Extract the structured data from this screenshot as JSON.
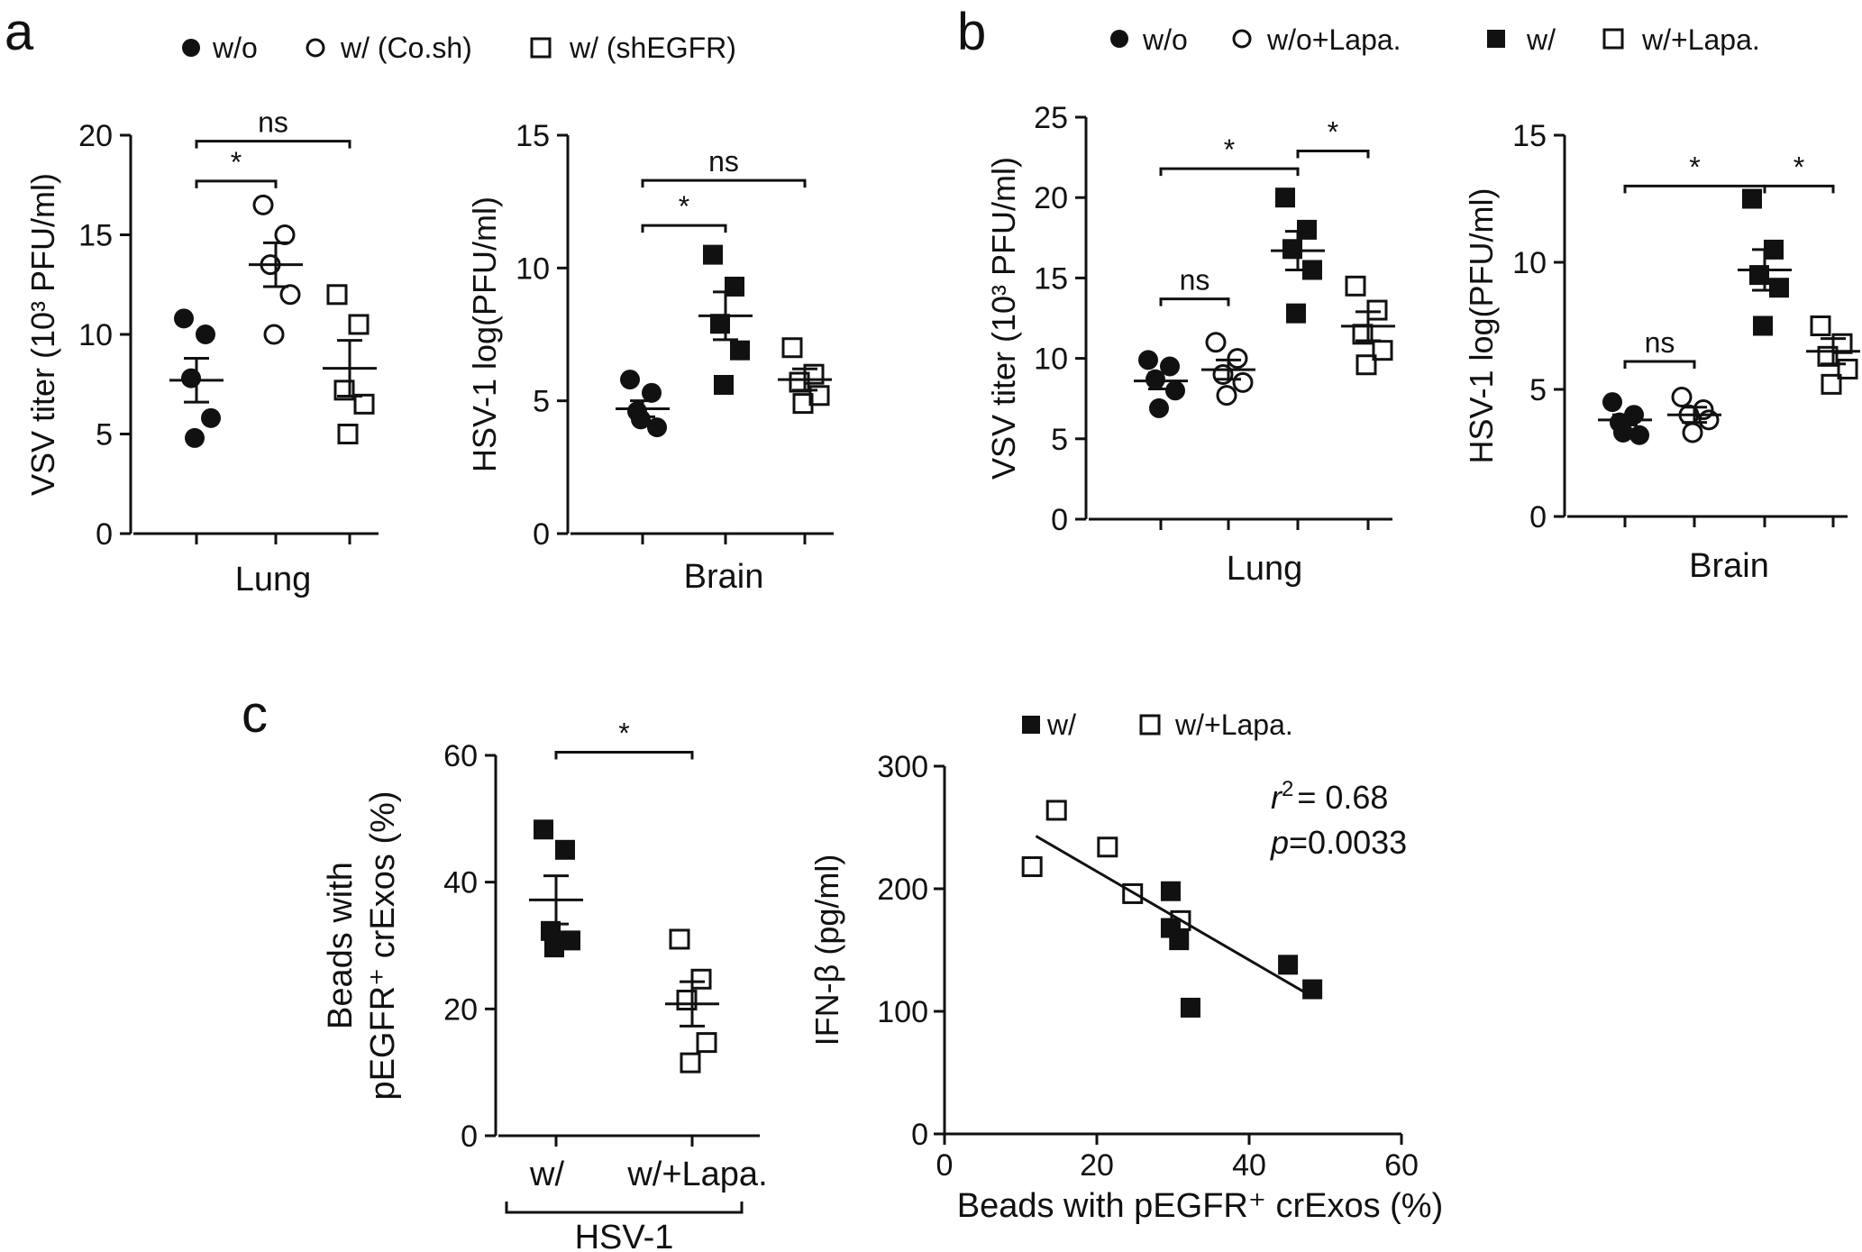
{
  "panel_labels": [
    "a",
    "b",
    "c"
  ],
  "legends": {
    "a": [
      {
        "marker": "filled-circle",
        "label": "w/o"
      },
      {
        "marker": "open-circle",
        "label": "w/ (Co.sh)"
      },
      {
        "marker": "open-square",
        "label": "w/ (shEGFR)"
      }
    ],
    "b": [
      {
        "marker": "filled-circle",
        "label": "w/o"
      },
      {
        "marker": "open-circle",
        "label": "w/o+Lapa."
      },
      {
        "marker": "filled-square",
        "label": "w/"
      },
      {
        "marker": "open-square",
        "label": "w/+Lapa."
      }
    ],
    "c": [
      {
        "marker": "filled-square",
        "label": "w/"
      },
      {
        "marker": "open-square",
        "label": "w/+Lapa."
      }
    ]
  },
  "chart_data": [
    {
      "id": "a_lung",
      "panel": "a",
      "type": "scatter",
      "ylabel": "VSV titer (10³ PFU/ml)",
      "xlabel": "Lung",
      "ylim": [
        0,
        20
      ],
      "yticks": [
        0,
        5,
        10,
        15,
        20
      ],
      "groups": [
        {
          "name": "w/o",
          "marker": "filled-circle",
          "points": [
            10.8,
            10.0,
            7.8,
            5.8,
            4.8
          ],
          "mean": 7.7,
          "sem": 1.1
        },
        {
          "name": "w/ (Co.sh)",
          "marker": "open-circle",
          "points": [
            16.5,
            15.0,
            13.5,
            12.0,
            10.0
          ],
          "mean": 13.5,
          "sem": 1.1
        },
        {
          "name": "w/ (shEGFR)",
          "marker": "open-square",
          "points": [
            12.0,
            10.5,
            7.2,
            6.5,
            5.0
          ],
          "mean": 8.3,
          "sem": 1.4
        }
      ],
      "comparisons": [
        {
          "from": 0,
          "to": 2,
          "label": "ns",
          "y": 19.7
        },
        {
          "from": 0,
          "to": 1,
          "label": "*",
          "y": 17.7
        }
      ]
    },
    {
      "id": "a_brain",
      "panel": "a",
      "type": "scatter",
      "ylabel": "HSV-1 log(PFU/ml)",
      "xlabel": "Brain",
      "ylim": [
        0,
        15
      ],
      "yticks": [
        0,
        5,
        10,
        15
      ],
      "groups": [
        {
          "name": "w/o",
          "marker": "filled-circle",
          "points": [
            5.8,
            5.3,
            4.6,
            4.0,
            4.3
          ],
          "mean": 4.7,
          "sem": 0.3
        },
        {
          "name": "w/ (Co.sh)",
          "marker": "filled-square",
          "points": [
            10.5,
            9.3,
            7.9,
            6.9,
            5.6
          ],
          "mean": 8.2,
          "sem": 0.9
        },
        {
          "name": "w/ (shEGFR)",
          "marker": "open-square",
          "points": [
            7.0,
            6.0,
            5.7,
            5.2,
            4.9
          ],
          "mean": 5.8,
          "sem": 0.4
        }
      ],
      "comparisons": [
        {
          "from": 0,
          "to": 2,
          "label": "ns",
          "y": 13.3
        },
        {
          "from": 0,
          "to": 1,
          "label": "*",
          "y": 11.6
        }
      ]
    },
    {
      "id": "b_lung",
      "panel": "b",
      "type": "scatter",
      "ylabel": "VSV titer (10³ PFU/ml)",
      "xlabel": "Lung",
      "ylim": [
        0,
        25
      ],
      "yticks": [
        0,
        5,
        10,
        15,
        20,
        25
      ],
      "groups": [
        {
          "name": "w/o",
          "marker": "filled-circle",
          "points": [
            9.9,
            9.5,
            8.7,
            8.0,
            6.9
          ],
          "mean": 8.6,
          "sem": 0.5
        },
        {
          "name": "w/o+Lapa.",
          "marker": "open-circle",
          "points": [
            11.0,
            10.0,
            9.0,
            8.5,
            7.7
          ],
          "mean": 9.3,
          "sem": 0.6
        },
        {
          "name": "w/",
          "marker": "filled-square",
          "points": [
            20.0,
            18.0,
            16.8,
            15.5,
            12.8
          ],
          "mean": 16.7,
          "sem": 1.2
        },
        {
          "name": "w/+Lapa.",
          "marker": "open-square",
          "points": [
            14.5,
            13.0,
            11.5,
            10.5,
            9.6
          ],
          "mean": 12.0,
          "sem": 0.9
        }
      ],
      "comparisons": [
        {
          "from": 0,
          "to": 1,
          "label": "ns",
          "y": 13.7
        },
        {
          "from": 0,
          "to": 2,
          "label": "*",
          "y": 21.8
        },
        {
          "from": 2,
          "to": 3,
          "label": "*",
          "y": 22.9
        }
      ]
    },
    {
      "id": "b_brain",
      "panel": "b",
      "type": "scatter",
      "ylabel": "HSV-1 log(PFU/ml)",
      "xlabel": "Brain",
      "ylim": [
        0,
        15
      ],
      "yticks": [
        0,
        5,
        10,
        15
      ],
      "groups": [
        {
          "name": "w/o",
          "marker": "filled-circle",
          "points": [
            4.5,
            4.0,
            3.7,
            3.2,
            3.3
          ],
          "mean": 3.8,
          "sem": 0.2
        },
        {
          "name": "w/o+Lapa.",
          "marker": "open-circle",
          "points": [
            4.7,
            4.2,
            4.0,
            3.8,
            3.3
          ],
          "mean": 4.0,
          "sem": 0.3
        },
        {
          "name": "w/",
          "marker": "filled-square",
          "points": [
            12.5,
            10.5,
            9.5,
            9.0,
            7.5
          ],
          "mean": 9.7,
          "sem": 0.8
        },
        {
          "name": "w/+Lapa.",
          "marker": "open-square",
          "points": [
            7.5,
            6.8,
            6.3,
            5.8,
            5.2
          ],
          "mean": 6.5,
          "sem": 0.5
        }
      ],
      "comparisons": [
        {
          "from": 0,
          "to": 1,
          "label": "ns",
          "y": 6.1
        },
        {
          "from": 0,
          "to": 2,
          "label": "*",
          "y": 13.0
        },
        {
          "from": 2,
          "to": 3,
          "label": "*",
          "y": 13.0
        }
      ]
    },
    {
      "id": "c_beads",
      "panel": "c",
      "type": "scatter",
      "ylabel_lines": [
        "Beads with",
        "pEGFR⁺ crExos (%)"
      ],
      "categories": [
        "w/",
        "w/+Lapa."
      ],
      "group_label": "HSV-1",
      "ylim": [
        0,
        60
      ],
      "yticks": [
        0,
        20,
        40,
        60
      ],
      "groups": [
        {
          "name": "w/",
          "marker": "filled-square",
          "points": [
            48.3,
            45.1,
            32.3,
            30.8,
            29.7
          ],
          "mean": 37.2,
          "sem": 3.8
        },
        {
          "name": "w/+Lapa.",
          "marker": "open-square",
          "points": [
            31.0,
            24.7,
            21.4,
            14.7,
            11.5
          ],
          "mean": 20.8,
          "sem": 3.5
        }
      ],
      "comparisons": [
        {
          "from": 0,
          "to": 1,
          "label": "*",
          "y": 60.5
        }
      ]
    },
    {
      "id": "c_corr",
      "panel": "c",
      "type": "scatter",
      "xlabel": "Beads with pEGFR⁺ crExos (%)",
      "ylabel": "IFN-β (pg/ml)",
      "xlim": [
        0,
        60
      ],
      "ylim": [
        0,
        300
      ],
      "xticks": [
        0,
        20,
        40,
        60
      ],
      "yticks": [
        0,
        100,
        200,
        300
      ],
      "series": [
        {
          "name": "w/",
          "marker": "filled-square",
          "x": [
            48.3,
            45.1,
            32.3,
            30.8,
            29.7,
            29.7
          ],
          "y": [
            118,
            138,
            103,
            158,
            168,
            198
          ]
        },
        {
          "name": "w/+Lapa.",
          "marker": "open-square",
          "x": [
            14.7,
            11.5,
            21.4,
            24.7,
            31.0
          ],
          "y": [
            264,
            218,
            234,
            196,
            174
          ]
        }
      ],
      "fit": {
        "x": [
          12,
          48
        ],
        "y": [
          243,
          113
        ]
      },
      "stats": {
        "r2_sym": "r",
        "r2_sup": "2",
        "r2_val": "= 0.68",
        "p_sym": "p",
        "p_val": "=0.0033"
      }
    }
  ]
}
